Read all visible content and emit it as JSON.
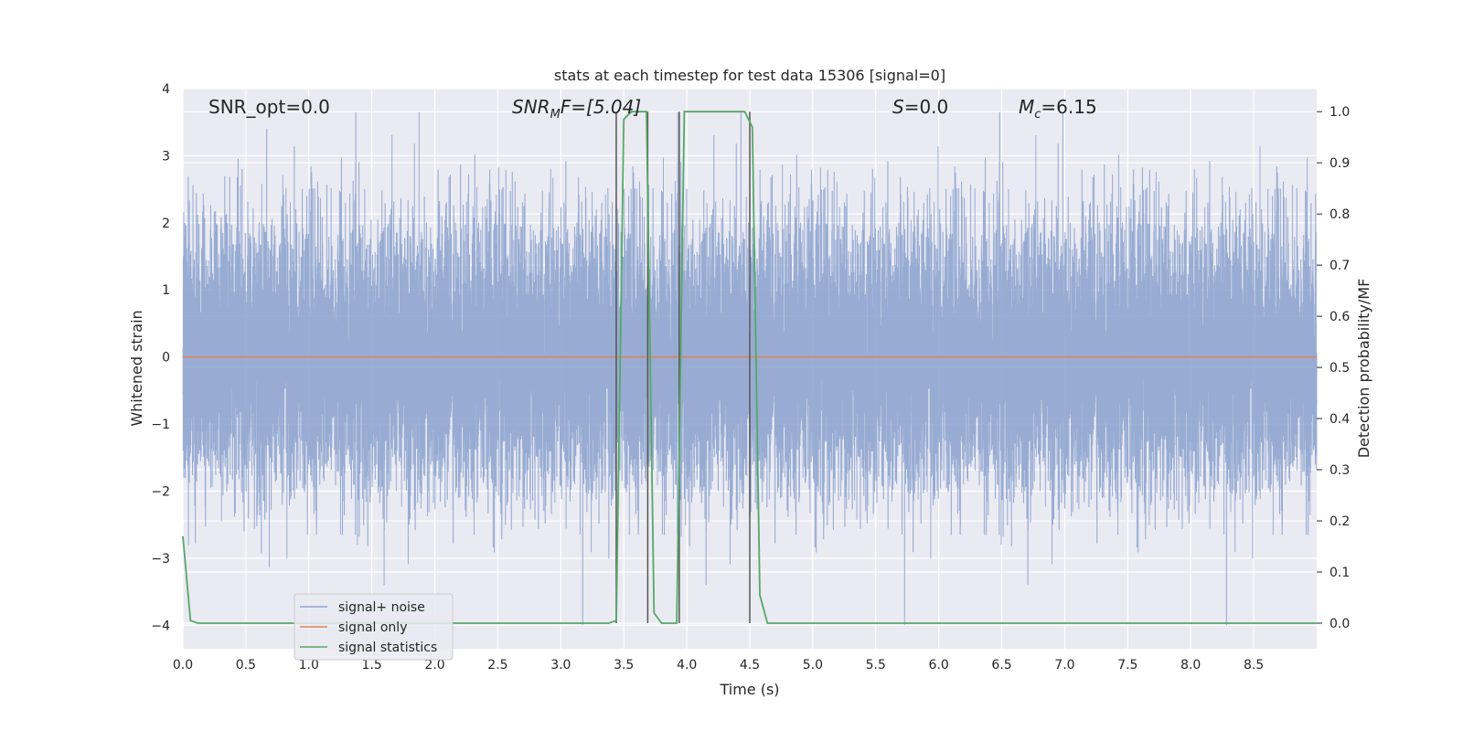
{
  "chart_data": {
    "type": "line",
    "title": "stats at each timestep for test data 15306 [signal=0]",
    "xlabel": "Time (s)",
    "ylabel_left": "Whitened strain",
    "ylabel_right": "Detection probability/MF",
    "xlim": [
      0.0,
      9.0
    ],
    "ylim_left": [
      -4.35,
      4.0
    ],
    "ylim_right": [
      -0.05,
      1.045
    ],
    "x_ticks": [
      0.0,
      0.5,
      1.0,
      1.5,
      2.0,
      2.5,
      3.0,
      3.5,
      4.0,
      4.5,
      5.0,
      5.5,
      6.0,
      6.5,
      7.0,
      7.5,
      8.0,
      8.5
    ],
    "x_tick_labels": [
      "0.0",
      "0.5",
      "1.0",
      "1.5",
      "2.0",
      "2.5",
      "3.0",
      "3.5",
      "4.0",
      "4.5",
      "5.0",
      "5.5",
      "6.0",
      "6.5",
      "7.0",
      "7.5",
      "8.0",
      "8.5"
    ],
    "y_ticks_left": [
      4,
      3,
      2,
      1,
      0,
      -1,
      -2,
      -3,
      -4
    ],
    "y_tick_labels_left": [
      "4",
      "3",
      "2",
      "1",
      "0",
      "−1",
      "−2",
      "−3",
      "−4"
    ],
    "y_ticks_right": [
      1.0,
      0.9,
      0.8,
      0.7,
      0.6,
      0.5,
      0.4,
      0.3,
      0.2,
      0.1,
      0.0
    ],
    "y_tick_labels_right": [
      "1.0",
      "0.9",
      "0.8",
      "0.7",
      "0.6",
      "0.5",
      "0.4",
      "0.3",
      "0.2",
      "0.1",
      "0.0"
    ],
    "grid": true,
    "legend_position": "lower-left",
    "annotations": {
      "snr_opt": "SNR_opt=0.0",
      "snr_mf_main": "SNR",
      "snr_mf_sub": "M",
      "snr_mf_rest": "F=[5.04]",
      "s_main": "S",
      "s_rest": "=0.0",
      "mc_main": "M",
      "mc_sub": "c",
      "mc_rest": "=6.15"
    },
    "series": [
      {
        "name": "signal+ noise",
        "color": "#8fa5cf",
        "axis": "left",
        "kind": "noise",
        "sample_rate": 2048,
        "mean": 0.0,
        "std": 1.0,
        "y_range": [
          -4.0,
          3.65
        ]
      },
      {
        "name": "signal only",
        "color": "#dd8452",
        "axis": "left",
        "x": [
          0.0,
          9.0
        ],
        "y": [
          0.0,
          0.0
        ]
      },
      {
        "name": "signal statistics",
        "color": "#55a868",
        "axis": "right",
        "x": [
          0.0,
          0.06,
          0.12,
          3.38,
          3.44,
          3.5,
          3.56,
          3.62,
          3.68,
          3.74,
          3.8,
          3.86,
          3.92,
          3.98,
          4.04,
          4.1,
          4.16,
          4.22,
          4.28,
          4.34,
          4.4,
          4.46,
          4.52,
          4.58,
          4.64,
          9.0
        ],
        "y": [
          0.17,
          0.005,
          0.0,
          0.0,
          0.005,
          0.985,
          1.0,
          1.0,
          1.0,
          0.02,
          0.0,
          0.0,
          0.0,
          1.0,
          1.0,
          1.0,
          1.0,
          1.0,
          1.0,
          1.0,
          1.0,
          1.0,
          0.97,
          0.055,
          0.0,
          0.0
        ]
      }
    ],
    "vertical_lines": {
      "color": "#555555",
      "x": [
        3.44,
        3.69,
        3.94,
        4.5
      ],
      "y_range_right": [
        0.0,
        1.0
      ]
    }
  }
}
